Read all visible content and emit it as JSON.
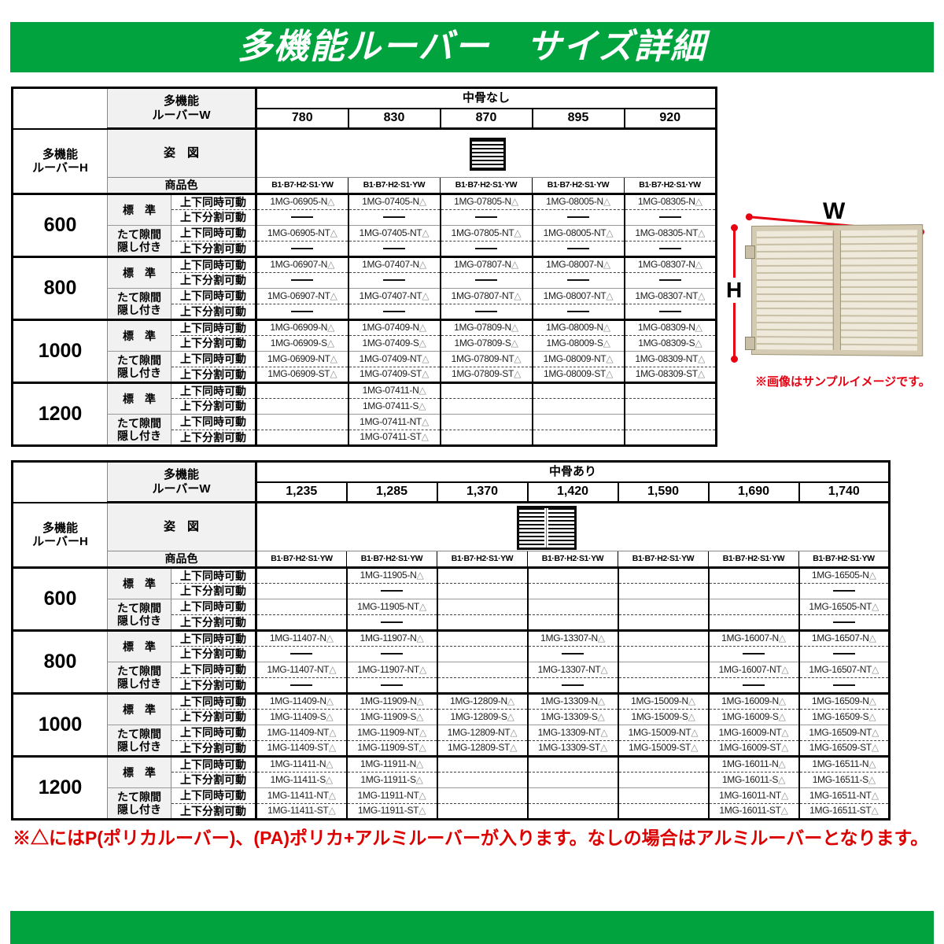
{
  "page": {
    "title": "多機能ルーバー　サイズ詳細"
  },
  "header_bar": {
    "color": "#00a33e"
  },
  "footer_bar": {
    "color": "#00a33e"
  },
  "illustration": {
    "w_label": "W",
    "h_label": "H",
    "caption": "※画像はサンプルイメージです。",
    "arrow_color": "#e60012"
  },
  "notes": {
    "triangle_note": "※△にはP(ポリカルーバー)、(PA)ポリカ+アルミルーバーが入ります。なしの場合はアルミルーバーとなります。",
    "color": "#dc0000"
  },
  "labels": {
    "w_header": [
      "多機能",
      "ルーバーW"
    ],
    "h_header": [
      "多機能",
      "ルーバーH"
    ],
    "figure": "姿　図",
    "product_color": "商品色",
    "standard": "標　準",
    "gap_hidden": [
      "たて隙間",
      "隠し付き"
    ],
    "move_rows": [
      "上下同時可動",
      "上下分割可動",
      "上下同時可動",
      "上下分割可動"
    ]
  },
  "tables": [
    {
      "name": "size-table-no-midrail",
      "bone_label": "中骨なし",
      "widths": [
        "780",
        "830",
        "870",
        "895",
        "920"
      ],
      "color_codes": [
        "B1·B7·H2·S1·YW",
        "B1·B7·H2·S1·YW",
        "B1·B7·H2·S1·YW",
        "B1·B7·H2·S1·YW",
        "B1·B7·H2·S1·YW"
      ],
      "figure_column": 2,
      "groups": [
        {
          "height": "600",
          "rows": [
            [
              "1MG-06905-N△",
              "1MG-07405-N△",
              "1MG-07805-N△",
              "1MG-08005-N△",
              "1MG-08305-N△"
            ],
            [
              "——",
              "——",
              "——",
              "——",
              "——"
            ],
            [
              "1MG-06905-NT△",
              "1MG-07405-NT△",
              "1MG-07805-NT△",
              "1MG-08005-NT△",
              "1MG-08305-NT△"
            ],
            [
              "——",
              "——",
              "——",
              "——",
              "——"
            ]
          ]
        },
        {
          "height": "800",
          "rows": [
            [
              "1MG-06907-N△",
              "1MG-07407-N△",
              "1MG-07807-N△",
              "1MG-08007-N△",
              "1MG-08307-N△"
            ],
            [
              "——",
              "——",
              "——",
              "——",
              "——"
            ],
            [
              "1MG-06907-NT△",
              "1MG-07407-NT△",
              "1MG-07807-NT△",
              "1MG-08007-NT△",
              "1MG-08307-NT△"
            ],
            [
              "——",
              "——",
              "——",
              "——",
              "——"
            ]
          ]
        },
        {
          "height": "1000",
          "rows": [
            [
              "1MG-06909-N△",
              "1MG-07409-N△",
              "1MG-07809-N△",
              "1MG-08009-N△",
              "1MG-08309-N△"
            ],
            [
              "1MG-06909-S△",
              "1MG-07409-S△",
              "1MG-07809-S△",
              "1MG-08009-S△",
              "1MG-08309-S△"
            ],
            [
              "1MG-06909-NT△",
              "1MG-07409-NT△",
              "1MG-07809-NT△",
              "1MG-08009-NT△",
              "1MG-08309-NT△"
            ],
            [
              "1MG-06909-ST△",
              "1MG-07409-ST△",
              "1MG-07809-ST△",
              "1MG-08009-ST△",
              "1MG-08309-ST△"
            ]
          ]
        },
        {
          "height": "1200",
          "rows": [
            [
              "",
              "1MG-07411-N△",
              "",
              "",
              ""
            ],
            [
              "",
              "1MG-07411-S△",
              "",
              "",
              ""
            ],
            [
              "",
              "1MG-07411-NT△",
              "",
              "",
              ""
            ],
            [
              "",
              "1MG-07411-ST△",
              "",
              "",
              ""
            ]
          ]
        }
      ]
    },
    {
      "name": "size-table-with-midrail",
      "bone_label": "中骨あり",
      "widths": [
        "1,235",
        "1,285",
        "1,370",
        "1,420",
        "1,590",
        "1,690",
        "1,740"
      ],
      "color_codes": [
        "B1·B7·H2·S1·YW",
        "B1·B7·H2·S1·YW",
        "B1·B7·H2·S1·YW",
        "B1·B7·H2·S1·YW",
        "B1·B7·H2·S1·YW",
        "B1·B7·H2·S1·YW",
        "B1·B7·H2·S1·YW"
      ],
      "figure_column": 3,
      "groups": [
        {
          "height": "600",
          "rows": [
            [
              "",
              "1MG-11905-N△",
              "",
              "",
              "",
              "",
              "1MG-16505-N△"
            ],
            [
              "",
              "——",
              "",
              "",
              "",
              "",
              "——"
            ],
            [
              "",
              "1MG-11905-NT△",
              "",
              "",
              "",
              "",
              "1MG-16505-NT△"
            ],
            [
              "",
              "——",
              "",
              "",
              "",
              "",
              "——"
            ]
          ]
        },
        {
          "height": "800",
          "rows": [
            [
              "1MG-11407-N△",
              "1MG-11907-N△",
              "",
              "1MG-13307-N△",
              "",
              "1MG-16007-N△",
              "1MG-16507-N△"
            ],
            [
              "——",
              "——",
              "",
              "——",
              "",
              "——",
              "——"
            ],
            [
              "1MG-11407-NT△",
              "1MG-11907-NT△",
              "",
              "1MG-13307-NT△",
              "",
              "1MG-16007-NT△",
              "1MG-16507-NT△"
            ],
            [
              "——",
              "——",
              "",
              "——",
              "",
              "——",
              "——"
            ]
          ]
        },
        {
          "height": "1000",
          "rows": [
            [
              "1MG-11409-N△",
              "1MG-11909-N△",
              "1MG-12809-N△",
              "1MG-13309-N△",
              "1MG-15009-N△",
              "1MG-16009-N△",
              "1MG-16509-N△"
            ],
            [
              "1MG-11409-S△",
              "1MG-11909-S△",
              "1MG-12809-S△",
              "1MG-13309-S△",
              "1MG-15009-S△",
              "1MG-16009-S△",
              "1MG-16509-S△"
            ],
            [
              "1MG-11409-NT△",
              "1MG-11909-NT△",
              "1MG-12809-NT△",
              "1MG-13309-NT△",
              "1MG-15009-NT△",
              "1MG-16009-NT△",
              "1MG-16509-NT△"
            ],
            [
              "1MG-11409-ST△",
              "1MG-11909-ST△",
              "1MG-12809-ST△",
              "1MG-13309-ST△",
              "1MG-15009-ST△",
              "1MG-16009-ST△",
              "1MG-16509-ST△"
            ]
          ]
        },
        {
          "height": "1200",
          "rows": [
            [
              "1MG-11411-N△",
              "1MG-11911-N△",
              "",
              "",
              "",
              "1MG-16011-N△",
              "1MG-16511-N△"
            ],
            [
              "1MG-11411-S△",
              "1MG-11911-S△",
              "",
              "",
              "",
              "1MG-16011-S△",
              "1MG-16511-S△"
            ],
            [
              "1MG-11411-NT△",
              "1MG-11911-NT△",
              "",
              "",
              "",
              "1MG-16011-NT△",
              "1MG-16511-NT△"
            ],
            [
              "1MG-11411-ST△",
              "1MG-11911-ST△",
              "",
              "",
              "",
              "1MG-16011-ST△",
              "1MG-16511-ST△"
            ]
          ]
        }
      ]
    }
  ]
}
